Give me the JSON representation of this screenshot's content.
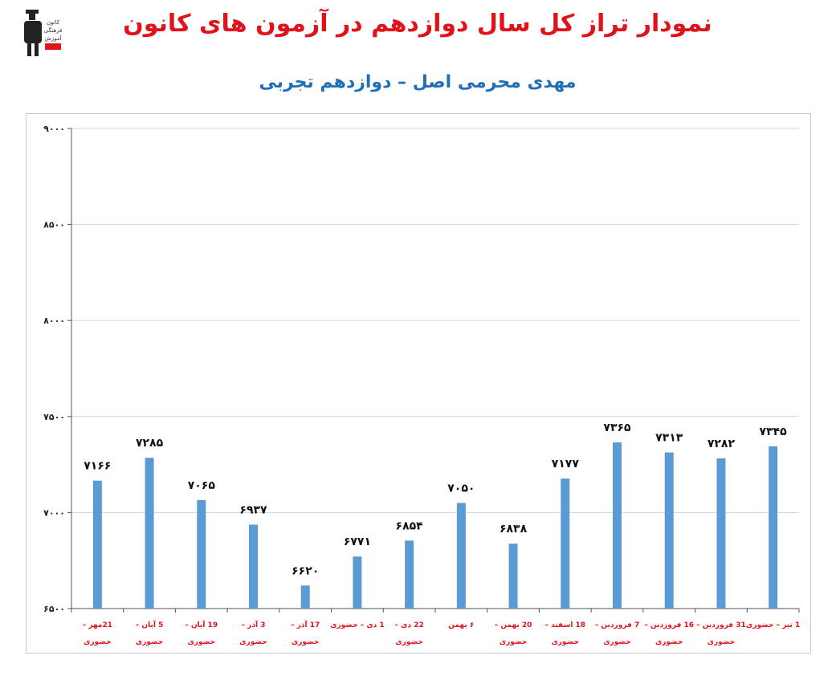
{
  "header": {
    "title": "نمودار تراز کل سال دوازدهم در آزمون های کانون",
    "subtitle": "مهدی محرمی اصل – دوازدهم تجربی",
    "logo_text": [
      "کانون",
      "فرهنگی",
      "آموزش"
    ]
  },
  "colors": {
    "title": "#e0131b",
    "subtitle": "#1f6fb8",
    "bar": "#5b9bd5",
    "category_label": "#e0131b",
    "gridline": "#c5d9f1"
  },
  "chart_data": {
    "type": "bar",
    "title": "",
    "xlabel": "",
    "ylabel": "",
    "ylim": [
      6500,
      9000
    ],
    "yticks": [
      6500,
      7000,
      7500,
      8000,
      8500,
      9000
    ],
    "ytick_labels": [
      "۶۵۰۰",
      "۷۰۰۰",
      "۷۵۰۰",
      "۸۰۰۰",
      "۸۵۰۰",
      "۹۰۰۰"
    ],
    "grid": true,
    "legend": "none",
    "categories": [
      [
        "21مهر –",
        "حضوری"
      ],
      [
        "5 آبان –",
        "حضوری"
      ],
      [
        "19 آبان –",
        "حضوری"
      ],
      [
        "3 آذر –",
        "حضوری"
      ],
      [
        "17 آذر –",
        "حضوری"
      ],
      [
        "1 دی – حضوری"
      ],
      [
        "22 دی –",
        "حضوری"
      ],
      [
        "۶ بهمن"
      ],
      [
        "20 بهمن –",
        "حضوری"
      ],
      [
        "18 اسفند –",
        "حضوری"
      ],
      [
        "7 فروردین –",
        "حضوری"
      ],
      [
        "16 فروردین –",
        "حضوری"
      ],
      [
        "31 فروردین –",
        "حضوری"
      ],
      [
        "1 تیر – حضوری"
      ]
    ],
    "values": [
      7166,
      7285,
      7065,
      6937,
      6620,
      6771,
      6854,
      7050,
      6838,
      7177,
      7365,
      7313,
      7282,
      7345
    ],
    "value_labels": [
      "۷۱۶۶",
      "۷۲۸۵",
      "۷۰۶۵",
      "۶۹۳۷",
      "۶۶۲۰",
      "۶۷۷۱",
      "۶۸۵۴",
      "۷۰۵۰",
      "۶۸۳۸",
      "۷۱۷۷",
      "۷۳۶۵",
      "۷۳۱۳",
      "۷۲۸۲",
      "۷۳۴۵"
    ]
  }
}
